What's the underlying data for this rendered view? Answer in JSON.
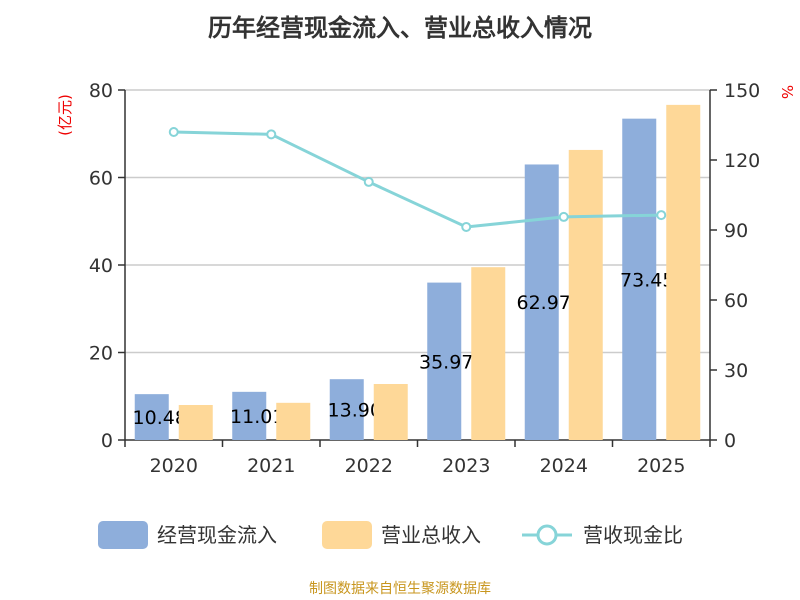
{
  "chart_data": {
    "type": "bar",
    "title": "历年经营现金流入、营业总收入情况",
    "categories": [
      "2020",
      "2021",
      "2022",
      "2023",
      "2024",
      "2025"
    ],
    "y_left": {
      "label": "(亿元)",
      "range": [
        0,
        80
      ],
      "ticks": [
        0,
        20,
        40,
        60,
        80
      ]
    },
    "y_right": {
      "label": "%",
      "range": [
        0,
        150
      ],
      "ticks": [
        0,
        30,
        60,
        90,
        120,
        150
      ]
    },
    "grid": true,
    "legend_position": "bottom",
    "series": [
      {
        "name": "经营现金流入",
        "type": "bar",
        "axis": "left",
        "color": "#8eaedb",
        "values": [
          10.48,
          11.01,
          13.9,
          35.978,
          62.978,
          73.45
        ],
        "data_labels": [
          "10.48",
          "11.01",
          "13.90",
          "35.978",
          "62.978",
          "73.45"
        ]
      },
      {
        "name": "营业总收入",
        "type": "bar",
        "axis": "left",
        "color": "#fed898",
        "values": [
          8.0,
          8.5,
          12.8,
          39.5,
          66.3,
          76.6
        ]
      },
      {
        "name": "营收现金比",
        "type": "line",
        "axis": "right",
        "color": "#86d4d8",
        "values": [
          132,
          131,
          110.6,
          91.3,
          95.6,
          96.4
        ]
      }
    ]
  },
  "source": "制图数据来自恒生聚源数据库"
}
